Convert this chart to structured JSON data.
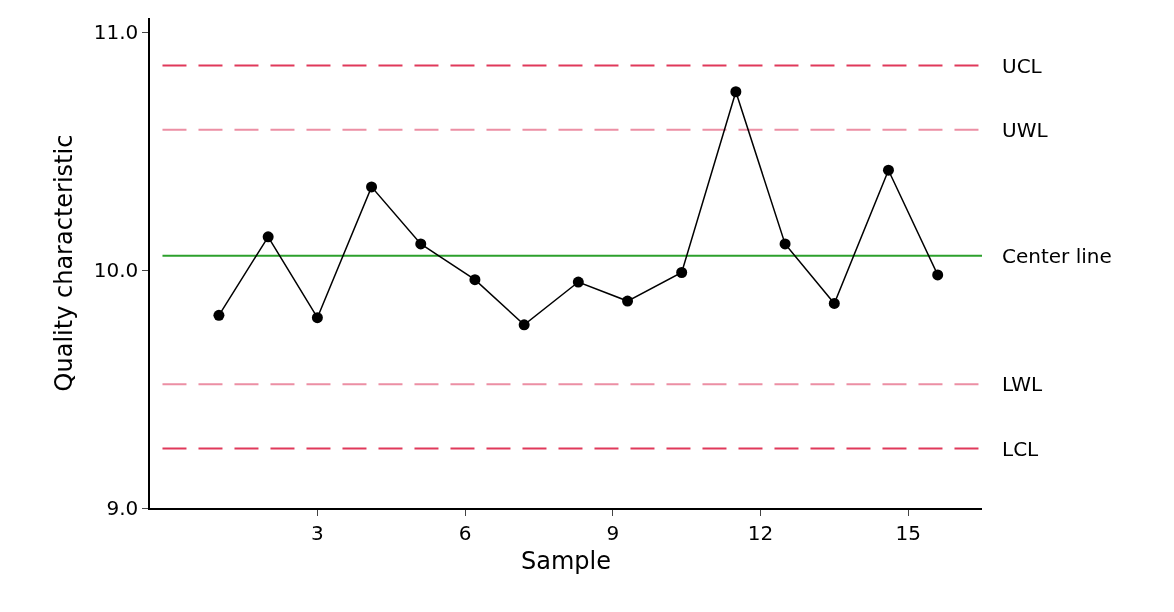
{
  "chart_data": {
    "type": "line",
    "xlabel": "Sample",
    "ylabel": "Quality characteristic",
    "x": [
      1.0,
      2.0,
      3.0,
      4.1,
      5.1,
      6.2,
      7.2,
      8.3,
      9.3,
      10.4,
      11.5,
      12.5,
      13.5,
      14.6,
      15.6
    ],
    "series": [
      {
        "color": "#000000",
        "values": [
          9.81,
          10.14,
          9.8,
          10.35,
          10.11,
          9.96,
          9.77,
          9.95,
          9.87,
          9.99,
          10.75,
          10.11,
          9.86,
          10.42,
          9.98
        ]
      }
    ],
    "marker": "circle",
    "line_style": "solid",
    "xlim": [
      -0.4,
      16.5
    ],
    "xticks": [
      3,
      6,
      9,
      12,
      15
    ],
    "ylim": [
      9.0,
      11.06
    ],
    "yticks": [
      {
        "value": 9,
        "label": "9.0"
      },
      {
        "value": 10,
        "label": "10.0"
      },
      {
        "value": 11,
        "label": "11.0"
      }
    ],
    "grid": false,
    "ref_lines": [
      {
        "axis": "y",
        "value": 10.86,
        "label": "UCL",
        "color": "#e0395a",
        "line_style": "dashed"
      },
      {
        "axis": "y",
        "value": 10.59,
        "label": "UWL",
        "color": "#ec8fa4",
        "line_style": "dashed"
      },
      {
        "axis": "y",
        "value": 10.06,
        "label": "Center line",
        "color": "#2ca02c",
        "line_style": "solid"
      },
      {
        "axis": "y",
        "value": 9.52,
        "label": "LWL",
        "color": "#ec8fa4",
        "line_style": "dashed"
      },
      {
        "axis": "y",
        "value": 9.25,
        "label": "LCL",
        "color": "#e0395a",
        "line_style": "dashed"
      }
    ]
  }
}
